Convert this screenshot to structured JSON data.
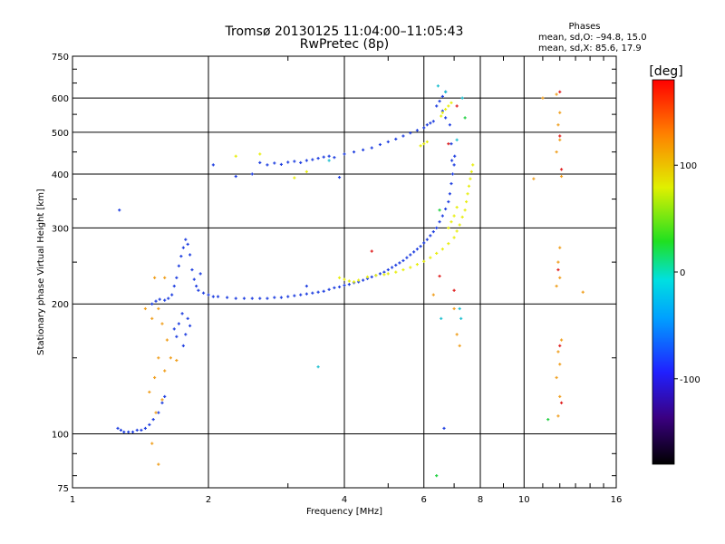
{
  "chart_data": {
    "type": "scatter",
    "title": "Tromsø 20130125 11:04:00–11:05:43",
    "subtitle": "RwPretec (8p)",
    "xlabel": "Frequency [MHz]",
    "ylabel": "Stationary phase Virtual Height [km]",
    "x_scale": "log",
    "y_scale": "log",
    "xlim": [
      1,
      16
    ],
    "ylim": [
      75,
      750
    ],
    "x_ticks": [
      1,
      2,
      4,
      6,
      8,
      10,
      16
    ],
    "y_ticks": [
      75,
      100,
      200,
      300,
      400,
      500,
      600,
      750
    ],
    "grid": true,
    "phase_box": {
      "title": "Phases",
      "line_o": "mean, sd,O: –94.8, 15.0",
      "line_x": "mean, sd,X:  85.6, 17.9"
    },
    "colorbar": {
      "label": "[deg]",
      "ticks": [
        100,
        0,
        -100
      ],
      "range": [
        -180,
        180
      ]
    },
    "series": [
      {
        "color": "#1f3fe0",
        "points": [
          [
            1.26,
            103
          ],
          [
            1.28,
            102
          ],
          [
            1.3,
            101
          ],
          [
            1.33,
            101
          ],
          [
            1.36,
            101
          ],
          [
            1.39,
            102
          ],
          [
            1.42,
            102
          ],
          [
            1.45,
            103
          ],
          [
            1.48,
            105
          ],
          [
            1.51,
            108
          ],
          [
            1.55,
            112
          ],
          [
            1.58,
            118
          ],
          [
            1.6,
            122
          ],
          [
            1.27,
            330
          ],
          [
            1.5,
            200
          ],
          [
            1.53,
            203
          ],
          [
            1.56,
            205
          ],
          [
            1.6,
            204
          ],
          [
            1.63,
            206
          ],
          [
            1.66,
            210
          ],
          [
            1.68,
            220
          ],
          [
            1.7,
            230
          ],
          [
            1.72,
            245
          ],
          [
            1.74,
            258
          ],
          [
            1.76,
            270
          ],
          [
            1.78,
            282
          ],
          [
            1.8,
            275
          ],
          [
            1.82,
            260
          ],
          [
            1.84,
            240
          ],
          [
            1.86,
            228
          ],
          [
            1.88,
            220
          ],
          [
            1.9,
            215
          ],
          [
            1.95,
            212
          ],
          [
            2.0,
            210
          ],
          [
            2.05,
            208
          ],
          [
            1.68,
            175
          ],
          [
            1.7,
            168
          ],
          [
            1.72,
            180
          ],
          [
            1.75,
            190
          ],
          [
            1.78,
            170
          ],
          [
            1.8,
            185
          ],
          [
            1.82,
            178
          ],
          [
            1.76,
            160
          ],
          [
            2.1,
            208
          ],
          [
            2.2,
            207
          ],
          [
            2.3,
            206
          ],
          [
            2.4,
            206
          ],
          [
            2.5,
            206
          ],
          [
            2.6,
            206
          ],
          [
            2.7,
            206
          ],
          [
            2.8,
            207
          ],
          [
            2.9,
            207
          ],
          [
            3.0,
            208
          ],
          [
            3.1,
            209
          ],
          [
            3.2,
            210
          ],
          [
            3.3,
            211
          ],
          [
            3.4,
            212
          ],
          [
            3.5,
            213
          ],
          [
            3.6,
            214
          ],
          [
            3.7,
            216
          ],
          [
            3.8,
            218
          ],
          [
            3.9,
            219
          ],
          [
            4.0,
            221
          ],
          [
            4.1,
            222
          ],
          [
            4.2,
            224
          ],
          [
            4.3,
            225
          ],
          [
            4.4,
            227
          ],
          [
            4.5,
            229
          ],
          [
            4.6,
            231
          ],
          [
            4.7,
            233
          ],
          [
            4.8,
            235
          ],
          [
            4.9,
            237
          ],
          [
            5.0,
            240
          ],
          [
            5.1,
            243
          ],
          [
            5.2,
            246
          ],
          [
            5.3,
            249
          ],
          [
            5.4,
            252
          ],
          [
            5.5,
            256
          ],
          [
            5.6,
            260
          ],
          [
            5.7,
            264
          ],
          [
            5.8,
            268
          ],
          [
            5.9,
            272
          ],
          [
            6.0,
            277
          ],
          [
            6.1,
            282
          ],
          [
            6.2,
            288
          ],
          [
            6.3,
            294
          ],
          [
            6.4,
            300
          ],
          [
            6.5,
            310
          ],
          [
            6.6,
            320
          ],
          [
            6.7,
            332
          ],
          [
            6.8,
            345
          ],
          [
            6.85,
            360
          ],
          [
            6.9,
            380
          ],
          [
            6.95,
            400
          ],
          [
            7.0,
            420
          ],
          [
            7.02,
            440
          ],
          [
            2.6,
            425
          ],
          [
            2.7,
            420
          ],
          [
            2.8,
            424
          ],
          [
            2.9,
            421
          ],
          [
            3.0,
            426
          ],
          [
            3.1,
            428
          ],
          [
            3.2,
            425
          ],
          [
            3.3,
            430
          ],
          [
            3.4,
            432
          ],
          [
            3.5,
            435
          ],
          [
            3.6,
            438
          ],
          [
            3.7,
            440
          ],
          [
            3.8,
            437
          ],
          [
            4.0,
            445
          ],
          [
            4.2,
            450
          ],
          [
            4.4,
            455
          ],
          [
            4.6,
            460
          ],
          [
            4.8,
            468
          ],
          [
            5.0,
            475
          ],
          [
            5.2,
            482
          ],
          [
            5.4,
            490
          ],
          [
            5.6,
            498
          ],
          [
            5.8,
            505
          ],
          [
            6.0,
            512
          ],
          [
            6.1,
            520
          ],
          [
            6.2,
            525
          ],
          [
            6.3,
            530
          ],
          [
            6.4,
            575
          ],
          [
            6.5,
            590
          ],
          [
            6.6,
            605
          ],
          [
            6.7,
            620
          ],
          [
            6.6,
            560
          ],
          [
            6.7,
            540
          ],
          [
            2.05,
            420
          ],
          [
            2.3,
            395
          ],
          [
            2.5,
            400
          ],
          [
            3.3,
            220
          ],
          [
            3.9,
            393
          ],
          [
            6.65,
            103
          ],
          [
            6.85,
            520
          ],
          [
            6.9,
            470
          ],
          [
            6.92,
            430
          ],
          [
            1.92,
            235
          ]
        ]
      },
      {
        "color": "#e8ee10",
        "points": [
          [
            3.9,
            230
          ],
          [
            4.0,
            228
          ],
          [
            4.1,
            226
          ],
          [
            4.2,
            225
          ],
          [
            4.3,
            227
          ],
          [
            4.5,
            231
          ],
          [
            4.7,
            233
          ],
          [
            4.9,
            234
          ],
          [
            5.0,
            235
          ],
          [
            5.2,
            237
          ],
          [
            5.4,
            240
          ],
          [
            5.6,
            243
          ],
          [
            5.8,
            247
          ],
          [
            6.0,
            251
          ],
          [
            6.2,
            256
          ],
          [
            6.4,
            262
          ],
          [
            6.6,
            268
          ],
          [
            6.8,
            276
          ],
          [
            7.0,
            285
          ],
          [
            7.1,
            295
          ],
          [
            7.2,
            305
          ],
          [
            7.3,
            318
          ],
          [
            7.4,
            330
          ],
          [
            7.45,
            345
          ],
          [
            7.5,
            360
          ],
          [
            7.55,
            375
          ],
          [
            7.6,
            390
          ],
          [
            7.65,
            405
          ],
          [
            7.7,
            420
          ],
          [
            6.8,
            300
          ],
          [
            6.9,
            310
          ],
          [
            7.0,
            320
          ],
          [
            7.1,
            335
          ],
          [
            6.55,
            545
          ],
          [
            6.6,
            555
          ],
          [
            6.7,
            565
          ],
          [
            6.8,
            575
          ],
          [
            6.9,
            585
          ],
          [
            5.9,
            465
          ],
          [
            6.0,
            470
          ],
          [
            6.1,
            475
          ],
          [
            2.3,
            440
          ],
          [
            2.6,
            445
          ],
          [
            3.3,
            405
          ],
          [
            3.1,
            392
          ]
        ]
      },
      {
        "color": "#f0a020",
        "points": [
          [
            1.45,
            195
          ],
          [
            1.5,
            185
          ],
          [
            1.55,
            195
          ],
          [
            1.52,
            230
          ],
          [
            1.6,
            230
          ],
          [
            1.58,
            180
          ],
          [
            1.62,
            165
          ],
          [
            1.55,
            150
          ],
          [
            1.6,
            140
          ],
          [
            1.52,
            135
          ],
          [
            1.65,
            150
          ],
          [
            1.7,
            148
          ],
          [
            1.48,
            125
          ],
          [
            1.58,
            120
          ],
          [
            1.53,
            112
          ],
          [
            1.5,
            95
          ],
          [
            1.55,
            85
          ],
          [
            11.8,
            612
          ],
          [
            12.0,
            555
          ],
          [
            11.9,
            520
          ],
          [
            12.0,
            480
          ],
          [
            11.8,
            450
          ],
          [
            12.1,
            395
          ],
          [
            12.0,
            270
          ],
          [
            11.9,
            250
          ],
          [
            12.0,
            230
          ],
          [
            11.8,
            220
          ],
          [
            12.1,
            165
          ],
          [
            11.9,
            155
          ],
          [
            12.0,
            145
          ],
          [
            11.8,
            135
          ],
          [
            12.0,
            122
          ],
          [
            11.9,
            110
          ],
          [
            10.5,
            390
          ],
          [
            11.0,
            600
          ],
          [
            13.5,
            213
          ],
          [
            6.3,
            210
          ],
          [
            7.0,
            195
          ],
          [
            7.1,
            170
          ],
          [
            7.2,
            160
          ]
        ]
      },
      {
        "color": "#e02020",
        "points": [
          [
            4.6,
            265
          ],
          [
            6.5,
            232
          ],
          [
            7.0,
            215
          ],
          [
            12.0,
            620
          ],
          [
            12.0,
            490
          ],
          [
            12.1,
            410
          ],
          [
            11.9,
            240
          ],
          [
            12.0,
            160
          ],
          [
            12.1,
            118
          ],
          [
            6.8,
            470
          ],
          [
            7.1,
            575
          ]
        ]
      },
      {
        "color": "#20c0d0",
        "points": [
          [
            3.5,
            143
          ],
          [
            3.7,
            430
          ],
          [
            6.55,
            185
          ],
          [
            6.45,
            640
          ],
          [
            7.1,
            480
          ],
          [
            7.3,
            600
          ],
          [
            6.7,
            620
          ],
          [
            7.2,
            195
          ],
          [
            7.25,
            185
          ]
        ]
      },
      {
        "color": "#20d040",
        "points": [
          [
            6.4,
            80
          ],
          [
            11.3,
            108
          ],
          [
            6.5,
            330
          ],
          [
            7.4,
            540
          ]
        ]
      }
    ]
  }
}
